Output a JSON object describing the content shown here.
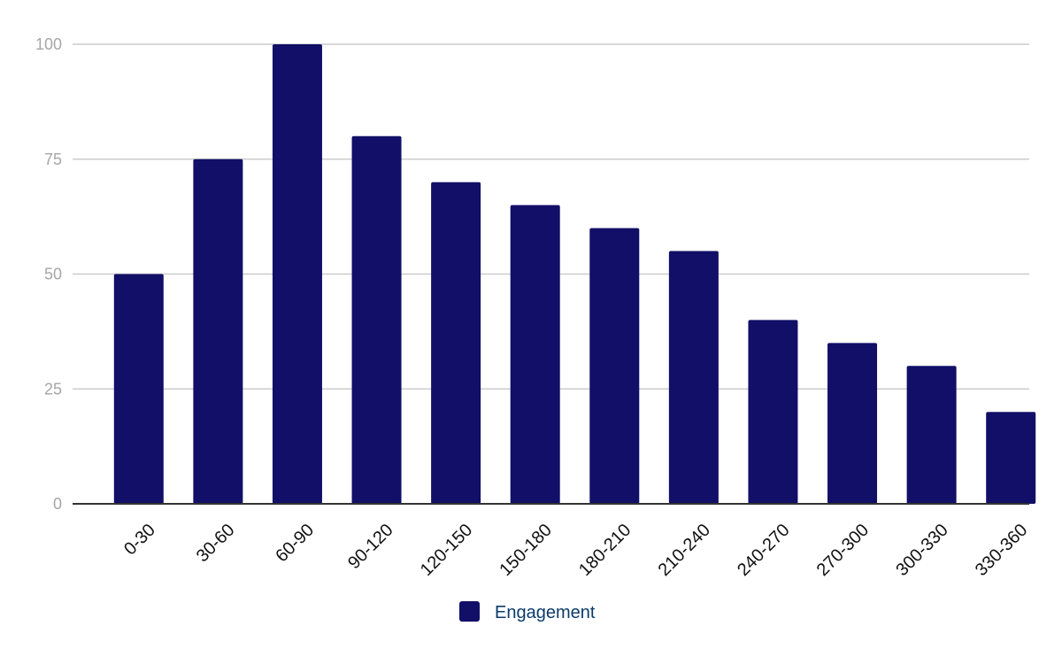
{
  "chart_data": {
    "type": "bar",
    "categories": [
      "0-30",
      "30-60",
      "60-90",
      "90-120",
      "120-150",
      "150-180",
      "180-210",
      "210-240",
      "240-270",
      "270-300",
      "300-330",
      "330-360"
    ],
    "series": [
      {
        "name": "Engagement",
        "values": [
          50,
          75,
          100,
          80,
          70,
          65,
          60,
          55,
          40,
          35,
          30,
          20
        ],
        "color": "#110f67"
      }
    ],
    "ylim": [
      0,
      100
    ],
    "yticks": [
      0,
      25,
      50,
      75,
      100
    ],
    "grid": true,
    "legend": "bottom",
    "colors": {
      "gridline": "#cccccc",
      "axis": "#333333",
      "tick_text": "#a6a6a6",
      "category_text": "#111111",
      "legend_text": "#0b3a6b"
    }
  }
}
